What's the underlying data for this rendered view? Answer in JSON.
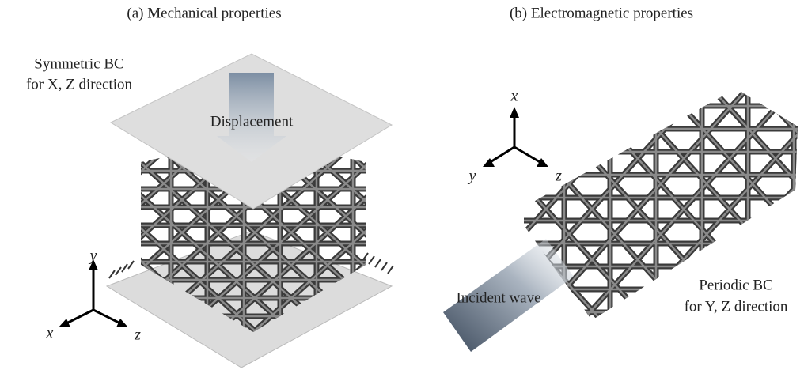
{
  "panels": [
    {
      "title": "(a) Mechanical properties",
      "boundary_condition": [
        "Symmetric BC",
        "for X, Z direction"
      ],
      "load": "Displacement",
      "axes": [
        "y",
        "x",
        "z"
      ]
    },
    {
      "title": "(b) Electromagnetic properties",
      "axes": [
        "x",
        "y",
        "z"
      ],
      "source": "Incident wave",
      "boundary_condition": [
        "Periodic BC",
        "for Y, Z direction"
      ]
    }
  ]
}
